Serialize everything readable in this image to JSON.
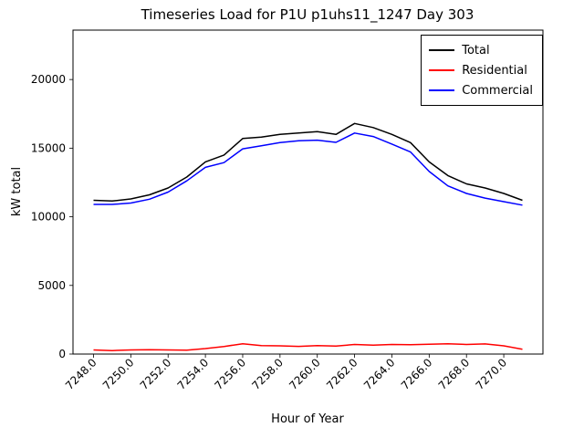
{
  "chart_data": {
    "type": "line",
    "title": "Timeseries Load for P1U p1uhs11_1247  Day 303",
    "xlabel": "Hour of Year",
    "ylabel": "kW total",
    "xlim": [
      7246.9,
      7272.1
    ],
    "ylim": [
      0,
      23600
    ],
    "grid": false,
    "legend_position": "upper right",
    "x": [
      7248,
      7249,
      7250,
      7251,
      7252,
      7253,
      7254,
      7255,
      7256,
      7257,
      7258,
      7259,
      7260,
      7261,
      7262,
      7263,
      7264,
      7265,
      7266,
      7267,
      7268,
      7269,
      7270,
      7271
    ],
    "series": [
      {
        "name": "Total",
        "color": "#000000",
        "values": [
          11200,
          11150,
          11300,
          11600,
          12100,
          12900,
          14000,
          14500,
          15700,
          15800,
          16000,
          16100,
          16200,
          16000,
          16800,
          16500,
          16000,
          15400,
          14000,
          13000,
          12400,
          12100,
          11700,
          11200
        ]
      },
      {
        "name": "Residential",
        "color": "#ff0000",
        "values": [
          300,
          250,
          300,
          320,
          300,
          280,
          400,
          550,
          750,
          620,
          600,
          560,
          620,
          580,
          700,
          650,
          700,
          680,
          720,
          750,
          700,
          740,
          600,
          350
        ]
      },
      {
        "name": "Commercial",
        "color": "#0000ff",
        "values": [
          10900,
          10900,
          11000,
          11280,
          11800,
          12620,
          13600,
          13950,
          14950,
          15180,
          15400,
          15540,
          15580,
          15420,
          16100,
          15850,
          15300,
          14720,
          13300,
          12250,
          11700,
          11360,
          11100,
          10850
        ]
      }
    ],
    "xticks": {
      "values": [
        7248,
        7250,
        7252,
        7254,
        7256,
        7258,
        7260,
        7262,
        7264,
        7266,
        7268,
        7270
      ],
      "labels": [
        "7248.0",
        "7250.0",
        "7252.0",
        "7254.0",
        "7256.0",
        "7258.0",
        "7260.0",
        "7262.0",
        "7264.0",
        "7266.0",
        "7268.0",
        "7270.0"
      ]
    },
    "yticks": {
      "values": [
        0,
        5000,
        10000,
        15000,
        20000
      ],
      "labels": [
        "0",
        "5000",
        "10000",
        "15000",
        "20000"
      ]
    }
  }
}
